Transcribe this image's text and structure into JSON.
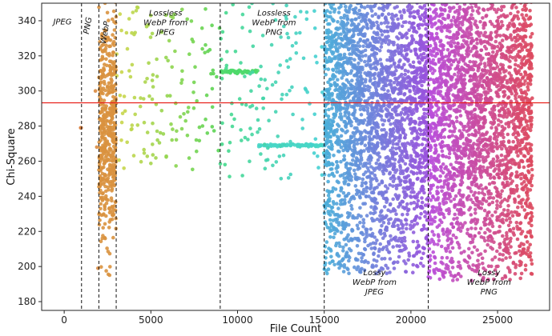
{
  "chart_data": {
    "type": "scatter",
    "title": "",
    "xlabel": "File Count",
    "ylabel": "Chi-Square",
    "xlim": [
      -1300,
      28000
    ],
    "ylim": [
      175,
      350
    ],
    "xticks": [
      0,
      5000,
      10000,
      15000,
      20000,
      25000
    ],
    "yticks": [
      180,
      200,
      220,
      240,
      260,
      280,
      300,
      320,
      340
    ],
    "threshold": {
      "y": 293.25,
      "color": "#e8211c"
    },
    "boundaries": [
      1000,
      2000,
      3000,
      9000,
      15000,
      21000
    ],
    "regions": [
      {
        "label": "JPEG",
        "x_start": 0,
        "x_end": 1000,
        "label_at": {
          "x": -100,
          "y": 338
        },
        "rotated": false
      },
      {
        "label": "PNG",
        "x_start": 1000,
        "x_end": 2000,
        "label_at": {
          "x": 1500,
          "y": 337
        },
        "rotated": true
      },
      {
        "label": "WebP",
        "x_start": 2000,
        "x_end": 3000,
        "label_at": {
          "x": 2500,
          "y": 333
        },
        "rotated": true
      },
      {
        "label": "Lossless\nWebP from\nJPEG",
        "x_start": 3000,
        "x_end": 9000,
        "label_at": {
          "x": 5850,
          "y": 343
        },
        "rotated": false
      },
      {
        "label": "Lossless\nWebP from\nPNG",
        "x_start": 9000,
        "x_end": 15000,
        "label_at": {
          "x": 12100,
          "y": 343
        },
        "rotated": false
      },
      {
        "label": "Lossy\nWebP from\nJPEG",
        "x_start": 15000,
        "x_end": 21000,
        "label_at": {
          "x": 17900,
          "y": 195
        },
        "rotated": false
      },
      {
        "label": "Lossy\nWebP from\nPNG",
        "x_start": 21000,
        "x_end": 27000,
        "label_at": {
          "x": 24500,
          "y": 195
        },
        "rotated": false
      }
    ],
    "point_clusters": [
      {
        "name": "JPEG",
        "x_range": [
          0,
          1000
        ],
        "approx_points": [
          [
            950,
            279
          ],
          [
            980,
            279
          ]
        ],
        "color": "#d9803f"
      },
      {
        "name": "PNG",
        "x_range": [
          1000,
          2000
        ],
        "approx_points": [
          [
            1800,
            300
          ],
          [
            1880,
            268
          ],
          [
            1950,
            199
          ]
        ],
        "color": "#d98a3f"
      },
      {
        "name": "WebP",
        "x_range": [
          2000,
          3000
        ],
        "y_range": [
          195,
          350
        ],
        "count": 500,
        "color": "#d9923f"
      },
      {
        "name": "Lossless WebP from JPEG",
        "x_range": [
          3000,
          9000
        ],
        "y_range": [
          255,
          350
        ],
        "count": 140,
        "color_start": "#cfd64a",
        "color_end": "#55d454"
      },
      {
        "name": "Lossless WebP from PNG band A",
        "x_range": [
          9000,
          11200
        ],
        "y_value": 311,
        "count": 60,
        "color": "#4fd96b"
      },
      {
        "name": "Lossless WebP from PNG band B",
        "x_range": [
          11200,
          15000
        ],
        "y_value": 269,
        "count": 90,
        "color": "#48d6c5"
      },
      {
        "name": "Lossless WebP from PNG scatter",
        "x_range": [
          9000,
          15000
        ],
        "y_range": [
          250,
          350
        ],
        "count": 130,
        "color_start": "#45d98a",
        "color_end": "#45cfd6"
      },
      {
        "name": "Lossy WebP from JPEG",
        "x_range": [
          15000,
          21000
        ],
        "y_range": [
          196,
          350
        ],
        "count": 2600,
        "color_start": "#4ab0d9",
        "color_end": "#9a50dd"
      },
      {
        "name": "Lossy WebP from PNG",
        "x_range": [
          21000,
          27000
        ],
        "y_range": [
          192,
          350
        ],
        "count": 2600,
        "color_start": "#b84fdd",
        "color_end": "#dd4a5e"
      }
    ]
  }
}
